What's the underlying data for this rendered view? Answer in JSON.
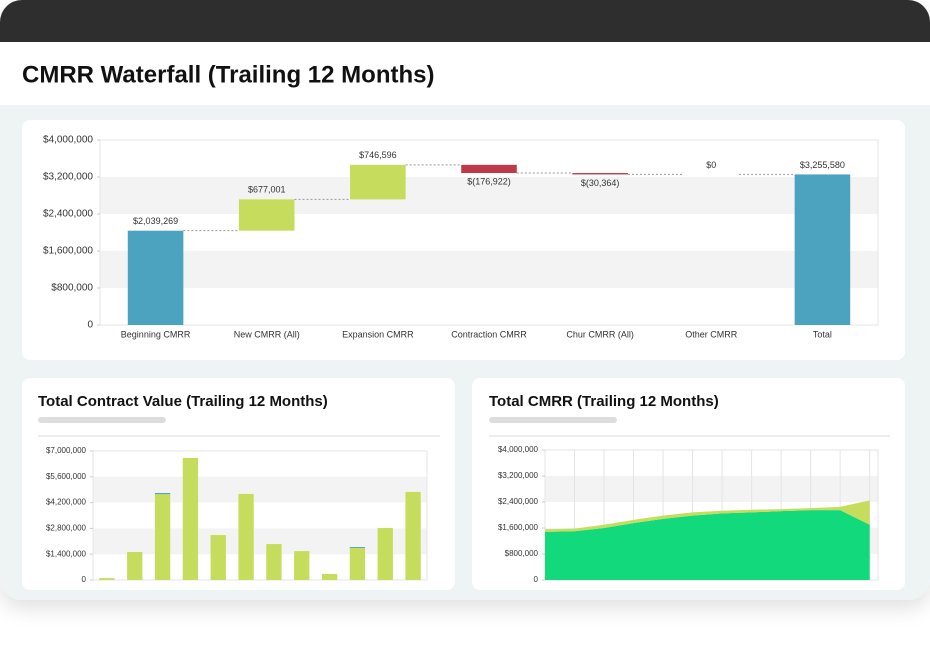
{
  "chart_data": [
    {
      "type": "waterfall",
      "title": "CMRR Waterfall (Trailing 12 Months)",
      "categories": [
        "Beginning CMRR",
        "New CMRR (All)",
        "Expansion CMRR",
        "Contraction CMRR",
        "Chur CMRR (All)",
        "Other CMRR",
        "Total"
      ],
      "values": [
        2039269,
        677001,
        746596,
        -176922,
        -30364,
        0,
        3255580
      ],
      "value_labels": [
        "$2,039,269",
        "$677,001",
        "$746,596",
        "$(176,922)",
        "$(30,364)",
        "$0",
        "$3,255,580"
      ],
      "is_total": [
        true,
        false,
        false,
        false,
        false,
        false,
        true
      ],
      "colors": {
        "total": "#4ba3bf",
        "increase": "#c6dc5c",
        "decrease": "#c0394a"
      },
      "ylim": [
        0,
        4000000
      ],
      "yticks": [
        0,
        {
          "value": 800000,
          "label": "$800,000"
        },
        {
          "value": 1600000,
          "label": "$1,600,000"
        },
        {
          "value": 2400000,
          "label": "$2,400,000"
        },
        {
          "value": 3200000,
          "label": "$3,200,000"
        },
        {
          "value": 4000000,
          "label": "$4,000,000"
        }
      ],
      "grid_bands": true
    },
    {
      "type": "bar",
      "title": "Total Contract Value (Trailing 12 Months)",
      "stacked": true,
      "categories": [
        null,
        null,
        null,
        null,
        null,
        null,
        null,
        null,
        null,
        null,
        null,
        null
      ],
      "series": [
        {
          "color": "#c6dc5c",
          "values": [
            100000,
            1520000,
            4660000,
            6620000,
            2440000,
            4670000,
            1950000,
            1570000,
            330000,
            1740000,
            2820000,
            4780000
          ]
        },
        {
          "color": "#4ba3bf",
          "values": [
            0,
            0,
            60000,
            0,
            0,
            0,
            0,
            0,
            0,
            50000,
            0,
            0
          ]
        }
      ],
      "ylim": [
        0,
        7000000
      ],
      "yticks": [
        0,
        {
          "value": 1400000,
          "label": "$1,400,000"
        },
        {
          "value": 2800000,
          "label": "$2,800,000"
        },
        {
          "value": 4200000,
          "label": "$4,200,000"
        },
        {
          "value": 5600000,
          "label": "$5,600,000"
        },
        {
          "value": 7000000,
          "label": "$7,000,000"
        }
      ],
      "grid_bands": true
    },
    {
      "type": "area",
      "title": "Total CMRR (Trailing 12 Months)",
      "stacked": true,
      "categories": [
        null,
        null,
        null,
        null,
        null,
        null,
        null,
        null,
        null,
        null,
        null,
        null
      ],
      "series": [
        {
          "color": "#12d97c",
          "values": [
            1480000,
            1500000,
            1600000,
            1750000,
            1880000,
            1980000,
            2050000,
            2080000,
            2120000,
            2150000,
            2150000,
            1700000
          ]
        },
        {
          "color": "#c6dc5c",
          "values": [
            80000,
            80000,
            100000,
            100000,
            100000,
            100000,
            80000,
            80000,
            60000,
            60000,
            100000,
            750000
          ]
        }
      ],
      "ylim": [
        0,
        4000000
      ],
      "yticks": [
        0,
        {
          "value": 800000,
          "label": "$800,000"
        },
        {
          "value": 1600000,
          "label": "$1,600,000"
        },
        {
          "value": 2400000,
          "label": "$2,400,000"
        },
        {
          "value": 3200000,
          "label": "$3,200,000"
        },
        {
          "value": 4000000,
          "label": "$4,000,000"
        }
      ],
      "grid_bands": true
    }
  ]
}
